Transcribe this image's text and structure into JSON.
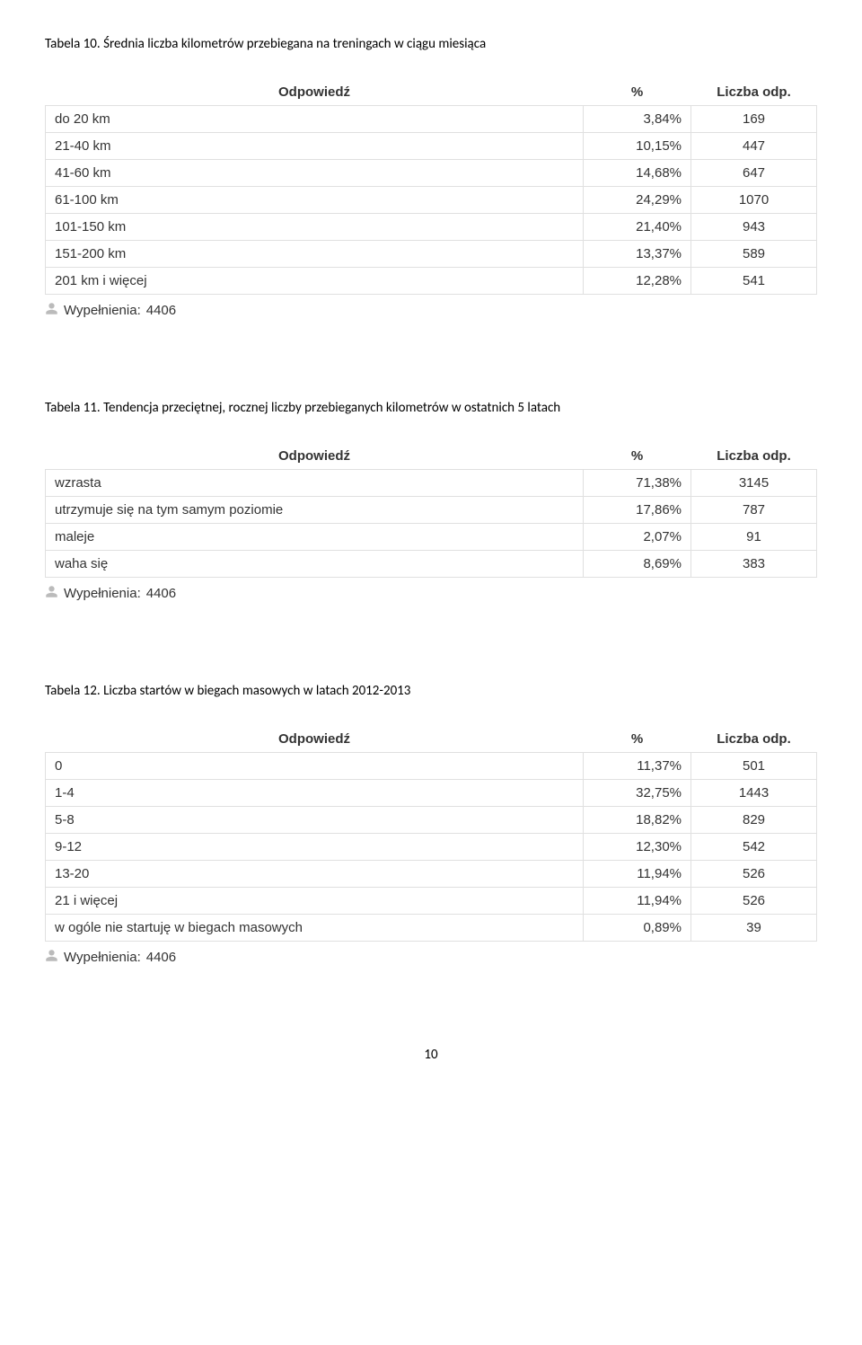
{
  "page_number": "10",
  "headers": {
    "answer": "Odpowiedź",
    "percent": "%",
    "count": "Liczba odp."
  },
  "fills_label": "Wypełnienia:",
  "icon_glyph": "👤",
  "sections": [
    {
      "caption": "Tabela 10. Średnia liczba kilometrów przebiegana na treningach w ciągu miesiąca",
      "fills_value": "4406",
      "rows": [
        {
          "answer": "do 20 km",
          "percent": "3,84%",
          "count": "169"
        },
        {
          "answer": "21-40 km",
          "percent": "10,15%",
          "count": "447"
        },
        {
          "answer": "41-60 km",
          "percent": "14,68%",
          "count": "647"
        },
        {
          "answer": "61-100 km",
          "percent": "24,29%",
          "count": "1070"
        },
        {
          "answer": "101-150 km",
          "percent": "21,40%",
          "count": "943"
        },
        {
          "answer": "151-200 km",
          "percent": "13,37%",
          "count": "589"
        },
        {
          "answer": "201 km i więcej",
          "percent": "12,28%",
          "count": "541"
        }
      ]
    },
    {
      "caption": "Tabela 11. Tendencja przeciętnej, rocznej liczby przebieganych kilometrów w ostatnich 5 latach",
      "fills_value": "4406",
      "rows": [
        {
          "answer": "wzrasta",
          "percent": "71,38%",
          "count": "3145"
        },
        {
          "answer": "utrzymuje się na tym samym poziomie",
          "percent": "17,86%",
          "count": "787"
        },
        {
          "answer": "maleje",
          "percent": "2,07%",
          "count": "91"
        },
        {
          "answer": "waha się",
          "percent": "8,69%",
          "count": "383"
        }
      ]
    },
    {
      "caption": "Tabela 12. Liczba startów w biegach masowych w latach 2012-2013",
      "fills_value": "4406",
      "rows": [
        {
          "answer": "0",
          "percent": "11,37%",
          "count": "501"
        },
        {
          "answer": "1-4",
          "percent": "32,75%",
          "count": "1443"
        },
        {
          "answer": "5-8",
          "percent": "18,82%",
          "count": "829"
        },
        {
          "answer": "9-12",
          "percent": "12,30%",
          "count": "542"
        },
        {
          "answer": "13-20",
          "percent": "11,94%",
          "count": "526"
        },
        {
          "answer": "21 i więcej",
          "percent": "11,94%",
          "count": "526"
        },
        {
          "answer": "w ogóle nie startuję w biegach masowych",
          "percent": "0,89%",
          "count": "39"
        }
      ]
    }
  ]
}
